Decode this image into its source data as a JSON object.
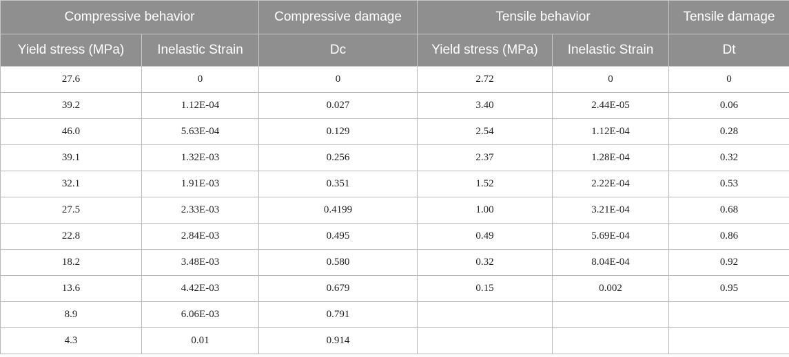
{
  "headers": {
    "group": [
      "Compressive behavior",
      "Compressive damage",
      "Tensile behavior",
      "Tensile damage"
    ],
    "sub": [
      "Yield stress (MPa)",
      "Inelastic Strain",
      "Dc",
      "Yield stress (MPa)",
      "Inelastic Strain",
      "Dt"
    ]
  },
  "rows": [
    [
      "27.6",
      "0",
      "0",
      "2.72",
      "0",
      "0"
    ],
    [
      "39.2",
      "1.12E-04",
      "0.027",
      "3.40",
      "2.44E-05",
      "0.06"
    ],
    [
      "46.0",
      "5.63E-04",
      "0.129",
      "2.54",
      "1.12E-04",
      "0.28"
    ],
    [
      "39.1",
      "1.32E-03",
      "0.256",
      "2.37",
      "1.28E-04",
      "0.32"
    ],
    [
      "32.1",
      "1.91E-03",
      "0.351",
      "1.52",
      "2.22E-04",
      "0.53"
    ],
    [
      "27.5",
      "2.33E-03",
      "0.4199",
      "1.00",
      "3.21E-04",
      "0.68"
    ],
    [
      "22.8",
      "2.84E-03",
      "0.495",
      "0.49",
      "5.69E-04",
      "0.86"
    ],
    [
      "18.2",
      "3.48E-03",
      "0.580",
      "0.32",
      "8.04E-04",
      "0.92"
    ],
    [
      "13.6",
      "4.42E-03",
      "0.679",
      "0.15",
      "0.002",
      "0.95"
    ],
    [
      "8.9",
      "6.06E-03",
      "0.791",
      "",
      "",
      ""
    ],
    [
      "4.3",
      "0.01",
      "0.914",
      "",
      "",
      ""
    ]
  ]
}
